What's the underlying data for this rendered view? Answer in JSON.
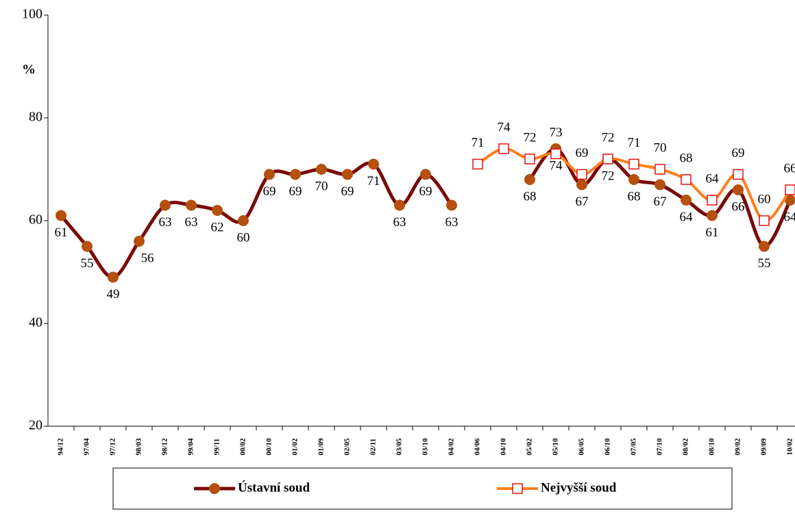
{
  "chart_data": {
    "type": "line",
    "ylabel": "%",
    "categories": [
      "94/12",
      "97/04",
      "97/12",
      "98/03",
      "98/12",
      "99/04",
      "99/11",
      "00/02",
      "00/10",
      "01/02",
      "01/09",
      "02/05",
      "02/11",
      "03/05",
      "03/10",
      "04/02",
      "04/06",
      "04/10",
      "05/02",
      "05/10",
      "06/05",
      "06/10",
      "07/05",
      "07/10",
      "08/02",
      "08/10",
      "09/02",
      "09/09",
      "10/02"
    ],
    "series": [
      {
        "name": "Ústavní soud",
        "color": "#7a0a0a",
        "marker_color": "#b5500f",
        "values": [
          61,
          55,
          49,
          56,
          63,
          63,
          62,
          60,
          69,
          69,
          70,
          69,
          71,
          63,
          69,
          63,
          null,
          null,
          68,
          74,
          67,
          72,
          68,
          67,
          64,
          61,
          66,
          55,
          64
        ]
      },
      {
        "name": "Nejvyšší soud",
        "color": "#ff7f1a",
        "marker_color": "#e01010",
        "values": [
          null,
          null,
          null,
          null,
          null,
          null,
          null,
          null,
          null,
          null,
          null,
          null,
          null,
          null,
          null,
          null,
          71,
          74,
          72,
          73,
          69,
          72,
          71,
          70,
          68,
          64,
          69,
          60,
          66
        ]
      }
    ],
    "ylim": [
      20,
      100
    ],
    "yticks": [
      20,
      40,
      60,
      80,
      100
    ],
    "legend": "bottom"
  }
}
